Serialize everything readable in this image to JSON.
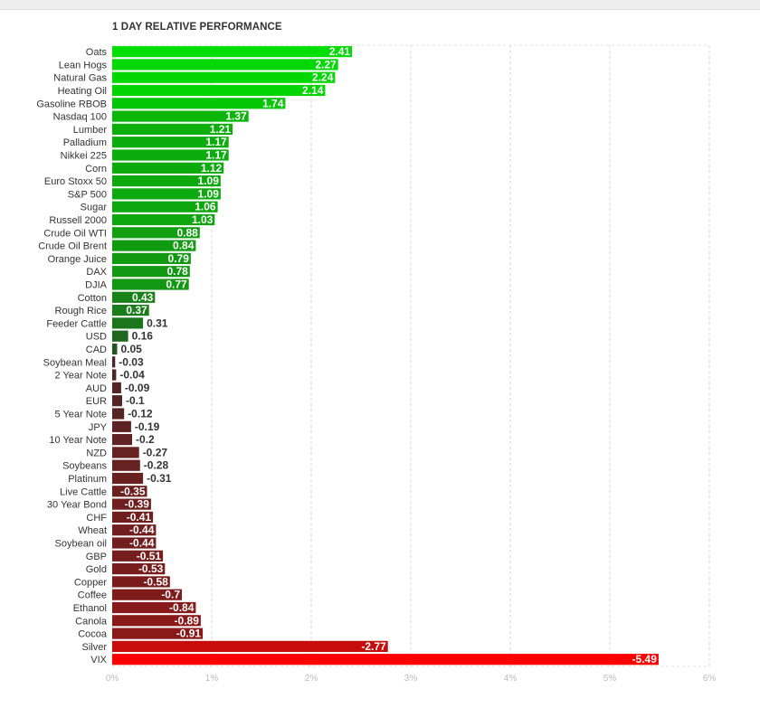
{
  "chart_data": {
    "type": "bar",
    "orientation": "horizontal",
    "title": "1 DAY RELATIVE PERFORMANCE",
    "xlabel": "",
    "ylabel": "",
    "xlim": [
      0,
      6
    ],
    "x_tick_labels": [
      "0%",
      "1%",
      "2%",
      "3%",
      "4%",
      "5%",
      "6%"
    ],
    "bar_length": "absolute value",
    "grid": true,
    "legend": "none",
    "colors": {
      "positive_strong": "#00dd00",
      "positive_weak": "#2a3d2a",
      "negative_weak": "#3a2a2a",
      "negative_strong": "#ff0000"
    },
    "categories": [
      "Oats",
      "Lean Hogs",
      "Natural Gas",
      "Heating Oil",
      "Gasoline RBOB",
      "Nasdaq 100",
      "Lumber",
      "Palladium",
      "Nikkei 225",
      "Corn",
      "Euro Stoxx 50",
      "S&P 500",
      "Sugar",
      "Russell 2000",
      "Crude Oil WTI",
      "Crude Oil Brent",
      "Orange Juice",
      "DAX",
      "DJIA",
      "Cotton",
      "Rough Rice",
      "Feeder Cattle",
      "USD",
      "CAD",
      "Soybean Meal",
      "2 Year Note",
      "AUD",
      "EUR",
      "5 Year Note",
      "JPY",
      "10 Year Note",
      "NZD",
      "Soybeans",
      "Platinum",
      "Live Cattle",
      "30 Year Bond",
      "CHF",
      "Wheat",
      "Soybean oil",
      "GBP",
      "Gold",
      "Copper",
      "Coffee",
      "Ethanol",
      "Canola",
      "Cocoa",
      "Silver",
      "VIX"
    ],
    "values": [
      2.41,
      2.27,
      2.24,
      2.14,
      1.74,
      1.37,
      1.21,
      1.17,
      1.17,
      1.12,
      1.09,
      1.09,
      1.06,
      1.03,
      0.88,
      0.84,
      0.79,
      0.78,
      0.77,
      0.43,
      0.37,
      0.31,
      0.16,
      0.05,
      -0.03,
      -0.04,
      -0.09,
      -0.1,
      -0.12,
      -0.19,
      -0.2,
      -0.27,
      -0.28,
      -0.31,
      -0.35,
      -0.39,
      -0.41,
      -0.44,
      -0.44,
      -0.51,
      -0.53,
      -0.58,
      -0.7,
      -0.84,
      -0.89,
      -0.91,
      -2.77,
      -5.49
    ],
    "value_labels": [
      "2.41",
      "2.27",
      "2.24",
      "2.14",
      "1.74",
      "1.37",
      "1.21",
      "1.17",
      "1.17",
      "1.12",
      "1.09",
      "1.09",
      "1.06",
      "1.03",
      "0.88",
      "0.84",
      "0.79",
      "0.78",
      "0.77",
      "0.43",
      "0.37",
      "0.31",
      "0.16",
      "0.05",
      "-0.03",
      "-0.04",
      "-0.09",
      "-0.1",
      "-0.12",
      "-0.19",
      "-0.2",
      "-0.27",
      "-0.28",
      "-0.31",
      "-0.35",
      "-0.39",
      "-0.41",
      "-0.44",
      "-0.44",
      "-0.51",
      "-0.53",
      "-0.58",
      "-0.7",
      "-0.84",
      "-0.89",
      "-0.91",
      "-2.77",
      "-5.49"
    ]
  }
}
